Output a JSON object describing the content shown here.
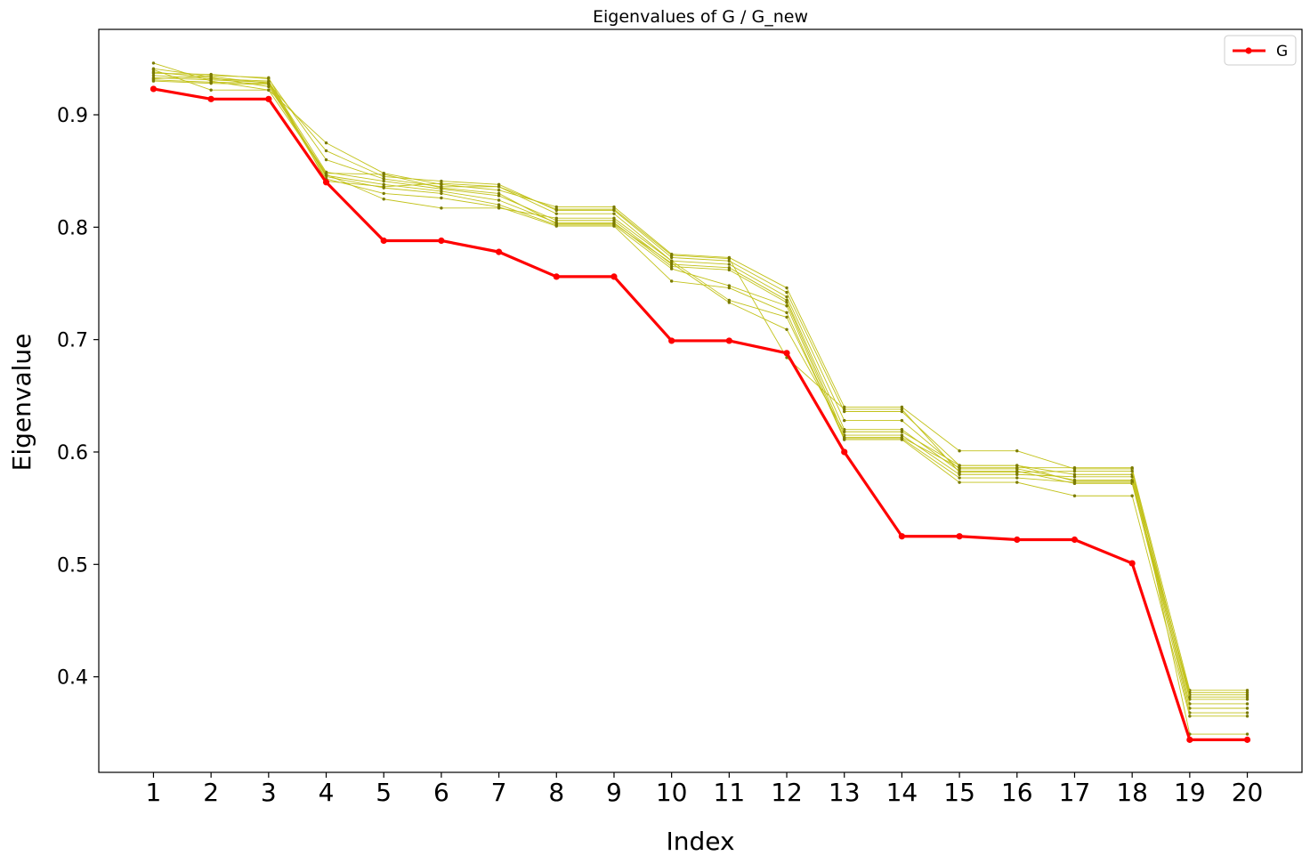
{
  "chart_data": {
    "type": "line",
    "title": "Eigenvalues of G / G_new",
    "xlabel": "Index",
    "ylabel": "Eigenvalue",
    "x": [
      1,
      2,
      3,
      4,
      5,
      6,
      7,
      8,
      9,
      10,
      11,
      12,
      13,
      14,
      15,
      16,
      17,
      18,
      19,
      20
    ],
    "xtick_labels": [
      "1",
      "2",
      "3",
      "4",
      "5",
      "6",
      "7",
      "8",
      "9",
      "10",
      "11",
      "12",
      "13",
      "14",
      "15",
      "16",
      "17",
      "18",
      "19",
      "20"
    ],
    "ytick_labels": [
      "0.4",
      "0.5",
      "0.6",
      "0.7",
      "0.8",
      "0.9"
    ],
    "ylim": [
      0.315,
      0.976
    ],
    "xlim": [
      0.05,
      20.95
    ],
    "grid": false,
    "legend": {
      "position": "top-right",
      "entries": [
        "G"
      ]
    },
    "colors": {
      "G": "#ff0000",
      "G_new": "#c2c21a",
      "G_new_marker": "#7a7a00"
    },
    "series": [
      {
        "name": "G",
        "values": [
          0.923,
          0.914,
          0.914,
          0.84,
          0.788,
          0.788,
          0.778,
          0.756,
          0.756,
          0.699,
          0.699,
          0.688,
          0.6,
          0.525,
          0.525,
          0.522,
          0.522,
          0.501,
          0.344,
          0.344
        ]
      },
      {
        "values": [
          0.946,
          0.93,
          0.922,
          0.875,
          0.848,
          0.838,
          0.833,
          0.818,
          0.818,
          0.776,
          0.773,
          0.746,
          0.64,
          0.64,
          0.601,
          0.601,
          0.585,
          0.585,
          0.388,
          0.388
        ]
      },
      {
        "values": [
          0.941,
          0.934,
          0.928,
          0.868,
          0.845,
          0.841,
          0.838,
          0.815,
          0.815,
          0.773,
          0.77,
          0.742,
          0.636,
          0.636,
          0.588,
          0.588,
          0.58,
          0.58,
          0.384,
          0.384
        ]
      },
      {
        "values": [
          0.937,
          0.936,
          0.932,
          0.86,
          0.843,
          0.836,
          0.836,
          0.812,
          0.812,
          0.77,
          0.767,
          0.738,
          0.628,
          0.628,
          0.585,
          0.585,
          0.575,
          0.575,
          0.38,
          0.38
        ]
      },
      {
        "values": [
          0.935,
          0.932,
          0.93,
          0.849,
          0.841,
          0.834,
          0.828,
          0.806,
          0.806,
          0.767,
          0.764,
          0.735,
          0.62,
          0.62,
          0.583,
          0.583,
          0.572,
          0.572,
          0.376,
          0.376
        ]
      },
      {
        "values": [
          0.933,
          0.931,
          0.929,
          0.846,
          0.838,
          0.832,
          0.824,
          0.804,
          0.804,
          0.765,
          0.762,
          0.733,
          0.615,
          0.615,
          0.58,
          0.58,
          0.578,
          0.578,
          0.372,
          0.372
        ]
      },
      {
        "values": [
          0.931,
          0.929,
          0.928,
          0.845,
          0.835,
          0.83,
          0.82,
          0.802,
          0.802,
          0.763,
          0.748,
          0.73,
          0.612,
          0.612,
          0.577,
          0.577,
          0.573,
          0.573,
          0.368,
          0.368
        ]
      },
      {
        "values": [
          0.93,
          0.928,
          0.927,
          0.843,
          0.83,
          0.826,
          0.818,
          0.801,
          0.801,
          0.752,
          0.746,
          0.724,
          0.611,
          0.611,
          0.573,
          0.573,
          0.561,
          0.561,
          0.365,
          0.365
        ]
      },
      {
        "values": [
          0.94,
          0.922,
          0.922,
          0.847,
          0.825,
          0.817,
          0.817,
          0.808,
          0.808,
          0.77,
          0.735,
          0.72,
          0.613,
          0.613,
          0.586,
          0.586,
          0.586,
          0.586,
          0.349,
          0.349
        ]
      },
      {
        "values": [
          0.938,
          0.933,
          0.925,
          0.848,
          0.847,
          0.835,
          0.83,
          0.803,
          0.803,
          0.768,
          0.733,
          0.709,
          0.618,
          0.618,
          0.588,
          0.588,
          0.574,
          0.574,
          0.386,
          0.386
        ]
      },
      {
        "values": [
          0.932,
          0.935,
          0.933,
          0.841,
          0.836,
          0.839,
          0.836,
          0.816,
          0.816,
          0.775,
          0.772,
          0.684,
          0.638,
          0.638,
          0.582,
          0.582,
          0.583,
          0.583,
          0.382,
          0.382
        ]
      }
    ]
  }
}
